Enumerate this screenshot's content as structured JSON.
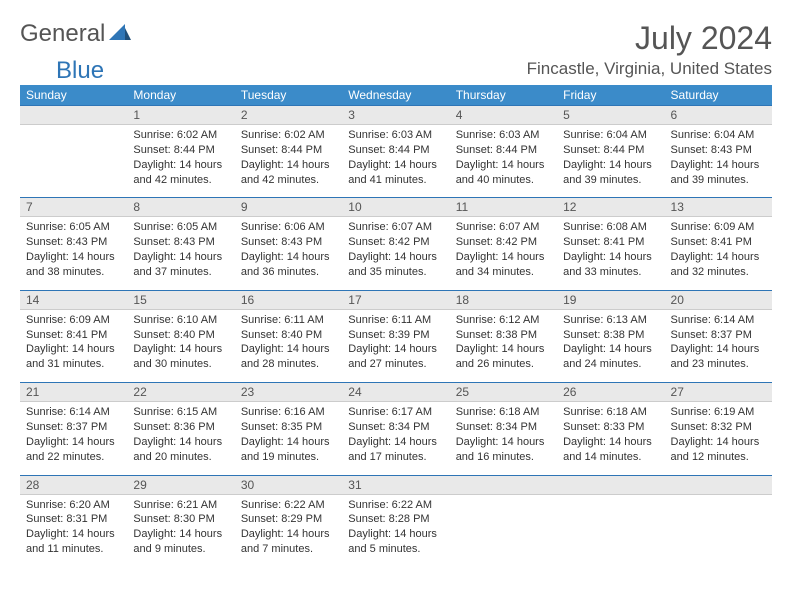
{
  "logo": {
    "word1": "General",
    "word2": "Blue"
  },
  "title": "July 2024",
  "location": "Fincastle, Virginia, United States",
  "colors": {
    "header_bg": "#3b8bc9",
    "header_text": "#ffffff",
    "daynum_bg": "#e9e9e9",
    "daynum_border_top": "#2e75b6",
    "text": "#333333",
    "muted": "#555555"
  },
  "weekdays": [
    "Sunday",
    "Monday",
    "Tuesday",
    "Wednesday",
    "Thursday",
    "Friday",
    "Saturday"
  ],
  "weeks": [
    [
      null,
      {
        "n": "1",
        "sr": "6:02 AM",
        "ss": "8:44 PM",
        "dl": "14 hours and 42 minutes."
      },
      {
        "n": "2",
        "sr": "6:02 AM",
        "ss": "8:44 PM",
        "dl": "14 hours and 42 minutes."
      },
      {
        "n": "3",
        "sr": "6:03 AM",
        "ss": "8:44 PM",
        "dl": "14 hours and 41 minutes."
      },
      {
        "n": "4",
        "sr": "6:03 AM",
        "ss": "8:44 PM",
        "dl": "14 hours and 40 minutes."
      },
      {
        "n": "5",
        "sr": "6:04 AM",
        "ss": "8:44 PM",
        "dl": "14 hours and 39 minutes."
      },
      {
        "n": "6",
        "sr": "6:04 AM",
        "ss": "8:43 PM",
        "dl": "14 hours and 39 minutes."
      }
    ],
    [
      {
        "n": "7",
        "sr": "6:05 AM",
        "ss": "8:43 PM",
        "dl": "14 hours and 38 minutes."
      },
      {
        "n": "8",
        "sr": "6:05 AM",
        "ss": "8:43 PM",
        "dl": "14 hours and 37 minutes."
      },
      {
        "n": "9",
        "sr": "6:06 AM",
        "ss": "8:43 PM",
        "dl": "14 hours and 36 minutes."
      },
      {
        "n": "10",
        "sr": "6:07 AM",
        "ss": "8:42 PM",
        "dl": "14 hours and 35 minutes."
      },
      {
        "n": "11",
        "sr": "6:07 AM",
        "ss": "8:42 PM",
        "dl": "14 hours and 34 minutes."
      },
      {
        "n": "12",
        "sr": "6:08 AM",
        "ss": "8:41 PM",
        "dl": "14 hours and 33 minutes."
      },
      {
        "n": "13",
        "sr": "6:09 AM",
        "ss": "8:41 PM",
        "dl": "14 hours and 32 minutes."
      }
    ],
    [
      {
        "n": "14",
        "sr": "6:09 AM",
        "ss": "8:41 PM",
        "dl": "14 hours and 31 minutes."
      },
      {
        "n": "15",
        "sr": "6:10 AM",
        "ss": "8:40 PM",
        "dl": "14 hours and 30 minutes."
      },
      {
        "n": "16",
        "sr": "6:11 AM",
        "ss": "8:40 PM",
        "dl": "14 hours and 28 minutes."
      },
      {
        "n": "17",
        "sr": "6:11 AM",
        "ss": "8:39 PM",
        "dl": "14 hours and 27 minutes."
      },
      {
        "n": "18",
        "sr": "6:12 AM",
        "ss": "8:38 PM",
        "dl": "14 hours and 26 minutes."
      },
      {
        "n": "19",
        "sr": "6:13 AM",
        "ss": "8:38 PM",
        "dl": "14 hours and 24 minutes."
      },
      {
        "n": "20",
        "sr": "6:14 AM",
        "ss": "8:37 PM",
        "dl": "14 hours and 23 minutes."
      }
    ],
    [
      {
        "n": "21",
        "sr": "6:14 AM",
        "ss": "8:37 PM",
        "dl": "14 hours and 22 minutes."
      },
      {
        "n": "22",
        "sr": "6:15 AM",
        "ss": "8:36 PM",
        "dl": "14 hours and 20 minutes."
      },
      {
        "n": "23",
        "sr": "6:16 AM",
        "ss": "8:35 PM",
        "dl": "14 hours and 19 minutes."
      },
      {
        "n": "24",
        "sr": "6:17 AM",
        "ss": "8:34 PM",
        "dl": "14 hours and 17 minutes."
      },
      {
        "n": "25",
        "sr": "6:18 AM",
        "ss": "8:34 PM",
        "dl": "14 hours and 16 minutes."
      },
      {
        "n": "26",
        "sr": "6:18 AM",
        "ss": "8:33 PM",
        "dl": "14 hours and 14 minutes."
      },
      {
        "n": "27",
        "sr": "6:19 AM",
        "ss": "8:32 PM",
        "dl": "14 hours and 12 minutes."
      }
    ],
    [
      {
        "n": "28",
        "sr": "6:20 AM",
        "ss": "8:31 PM",
        "dl": "14 hours and 11 minutes."
      },
      {
        "n": "29",
        "sr": "6:21 AM",
        "ss": "8:30 PM",
        "dl": "14 hours and 9 minutes."
      },
      {
        "n": "30",
        "sr": "6:22 AM",
        "ss": "8:29 PM",
        "dl": "14 hours and 7 minutes."
      },
      {
        "n": "31",
        "sr": "6:22 AM",
        "ss": "8:28 PM",
        "dl": "14 hours and 5 minutes."
      },
      null,
      null,
      null
    ]
  ],
  "labels": {
    "sunrise": "Sunrise:",
    "sunset": "Sunset:",
    "daylight": "Daylight:"
  }
}
